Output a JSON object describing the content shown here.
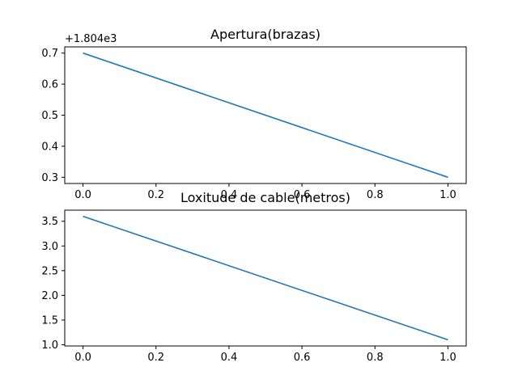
{
  "chart_data": [
    {
      "type": "line",
      "title": "Apertura(brazas)",
      "xlabel": "",
      "ylabel": "",
      "y_offset_label": "+1.804e3",
      "x": [
        0.0,
        1.0
      ],
      "series": [
        {
          "values": [
            1804.7,
            1804.3
          ],
          "color": "#1f77b4"
        }
      ],
      "xlim": [
        -0.05,
        1.05
      ],
      "ylim": [
        1804.28,
        1804.72
      ],
      "x_ticks": [
        "0.0",
        "0.2",
        "0.4",
        "0.6",
        "0.8",
        "1.0"
      ],
      "y_ticks": [
        "0.3",
        "0.4",
        "0.5",
        "0.6",
        "0.7"
      ],
      "grid": false
    },
    {
      "type": "line",
      "title": "Loxitude de cable(metros)",
      "xlabel": "",
      "ylabel": "",
      "x": [
        0.0,
        1.0
      ],
      "series": [
        {
          "values": [
            3.6,
            1.1
          ],
          "color": "#1f77b4"
        }
      ],
      "xlim": [
        -0.05,
        1.05
      ],
      "ylim": [
        0.975,
        3.725
      ],
      "x_ticks": [
        "0.0",
        "0.2",
        "0.4",
        "0.6",
        "0.8",
        "1.0"
      ],
      "y_ticks": [
        "1.0",
        "1.5",
        "2.0",
        "2.5",
        "3.0",
        "3.5"
      ],
      "grid": false
    }
  ]
}
